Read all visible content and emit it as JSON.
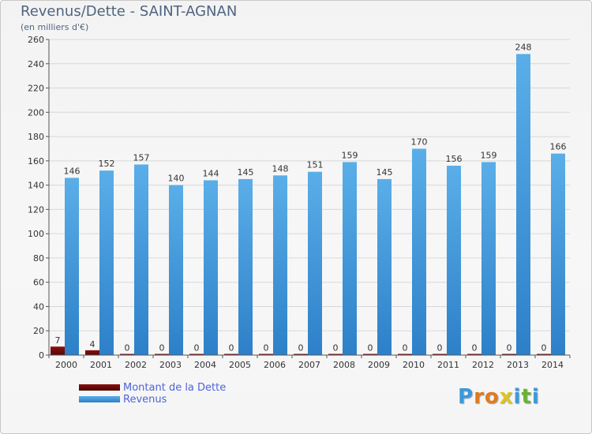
{
  "title": "Revenus/Dette - SAINT-AGNAN",
  "subtitle": "(en milliers d'€)",
  "colors": {
    "debt": "#6b0a0a",
    "revenue": "#3b8fd8",
    "axis_text": "#333333",
    "grid": "#d8d8d8",
    "title": "#4f6480",
    "legend_text": "#4f64d8"
  },
  "chart_data": {
    "type": "bar",
    "categories": [
      "2000",
      "2001",
      "2002",
      "2003",
      "2004",
      "2005",
      "2006",
      "2007",
      "2008",
      "2009",
      "2010",
      "2011",
      "2012",
      "2013",
      "2014"
    ],
    "series": [
      {
        "name": "Montant de la Dette",
        "values": [
          7,
          4,
          0,
          0,
          0,
          0,
          0,
          0,
          0,
          0,
          0,
          0,
          0,
          0,
          0
        ]
      },
      {
        "name": "Revenus",
        "values": [
          146,
          152,
          157,
          140,
          144,
          145,
          148,
          151,
          159,
          145,
          170,
          156,
          159,
          248,
          166
        ]
      }
    ],
    "ylim": [
      0,
      260
    ],
    "yticks": [
      0,
      20,
      40,
      60,
      80,
      100,
      120,
      140,
      160,
      180,
      200,
      220,
      240,
      260
    ],
    "grid": true,
    "legend_position": "bottom-left"
  },
  "legend": {
    "debt_label": "Montant de la Dette",
    "revenue_label": "Revenus"
  },
  "logo": {
    "letters": [
      "P",
      "r",
      "o",
      "x",
      "i",
      "t",
      "i"
    ],
    "colors": [
      "#3a9ad9",
      "#e07a1f",
      "#e07a1f",
      "#e0c41f",
      "#3a9ad9",
      "#69b32d",
      "#3a9ad9"
    ]
  }
}
